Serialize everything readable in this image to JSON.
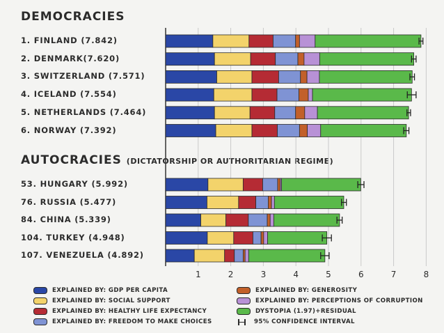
{
  "chart_data": {
    "type": "bar",
    "stacked": true,
    "orientation": "horizontal",
    "x_ticks": [
      1,
      2,
      3,
      4,
      5,
      6,
      7,
      8
    ],
    "xlim": [
      0,
      8
    ],
    "grid": true,
    "legend_position": "bottom",
    "segments": [
      {
        "name": "EXPLAINED BY: GDP PER CAPITA",
        "color": "#2a47a6"
      },
      {
        "name": "EXPLAINED BY: SOCIAL SUPPORT",
        "color": "#f3d36b"
      },
      {
        "name": "EXPLAINED BY: HEALTHY LIFE EXPECTANCY",
        "color": "#b52b34"
      },
      {
        "name": "EXPLAINED BY: FREEDOM TO MAKE CHOICES",
        "color": "#7f93d4"
      },
      {
        "name": "EXPLAINED BY: GENEROSITY",
        "color": "#c2602a"
      },
      {
        "name": "EXPLAINED BY: PERCEPTIONS OF CORRUPTION",
        "color": "#b891d6"
      },
      {
        "name": "DYSTOPIA (1.97)+RESIDUAL",
        "color": "#5ab94a"
      }
    ],
    "ci_label": "95% CONFIDENCE INTERVAL",
    "groups": [
      {
        "title": "DEMOCRACIES",
        "subtitle": "",
        "countries": [
          {
            "label": "1. FINLAND (7.842)",
            "values": [
              1.45,
              1.11,
              0.74,
              0.69,
              0.12,
              0.48,
              3.25
            ],
            "ci": [
              7.78,
              7.9
            ]
          },
          {
            "label": "2. DENMARK(7.620)",
            "values": [
              1.5,
              1.11,
              0.76,
              0.69,
              0.19,
              0.48,
              2.89
            ],
            "ci": [
              7.55,
              7.69
            ]
          },
          {
            "label": "3. SWITZERLAND (7.571)",
            "values": [
              1.57,
              1.08,
              0.82,
              0.67,
              0.2,
              0.38,
              2.85
            ],
            "ci": [
              7.5,
              7.64
            ]
          },
          {
            "label": "4. ICELAND (7.554)",
            "values": [
              1.48,
              1.17,
              0.77,
              0.67,
              0.29,
              0.13,
              3.04
            ],
            "ci": [
              7.42,
              7.69
            ]
          },
          {
            "label": "5. NETHERLANDS (7.464)",
            "values": [
              1.5,
              1.09,
              0.76,
              0.64,
              0.28,
              0.39,
              2.8
            ],
            "ci": [
              7.41,
              7.52
            ]
          },
          {
            "label": "6. NORWAY (7.392)",
            "values": [
              1.54,
              1.11,
              0.78,
              0.68,
              0.24,
              0.41,
              2.63
            ],
            "ci": [
              7.31,
              7.47
            ]
          }
        ]
      },
      {
        "title": "AUTOCRACIES",
        "subtitle": "(DICTATORSHIP OR AUTHORITARIAN REGIME)",
        "countries": [
          {
            "label": "53. HUNGARY (5.992)",
            "values": [
              1.3,
              1.08,
              0.6,
              0.46,
              0.08,
              0.04,
              2.43
            ],
            "ci": [
              5.9,
              6.09
            ]
          },
          {
            "label": "76. RUSSIA (5.477)",
            "values": [
              1.27,
              0.97,
              0.53,
              0.38,
              0.1,
              0.09,
              2.13
            ],
            "ci": [
              5.4,
              5.55
            ]
          },
          {
            "label": "84. CHINA (5.339)",
            "values": [
              1.08,
              0.77,
              0.69,
              0.58,
              0.09,
              0.11,
              2.02
            ],
            "ci": [
              5.26,
              5.42
            ]
          },
          {
            "label": "104. TURKEY (4.948)",
            "values": [
              1.28,
              0.81,
              0.59,
              0.25,
              0.08,
              0.12,
              1.82
            ],
            "ci": [
              4.81,
              5.09
            ]
          },
          {
            "label": "107. VENEZUELA (4.892)",
            "values": [
              0.88,
              0.93,
              0.3,
              0.27,
              0.06,
              0.11,
              2.34
            ],
            "ci": [
              4.76,
              5.02
            ]
          }
        ]
      }
    ]
  }
}
